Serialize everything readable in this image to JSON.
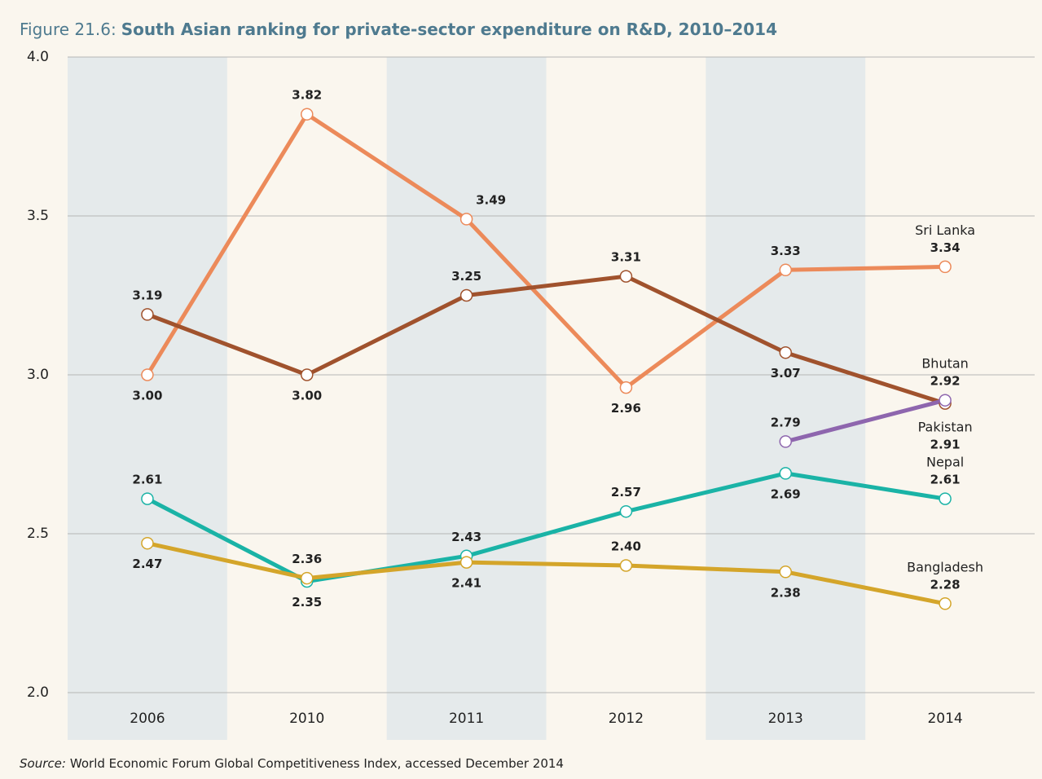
{
  "chart_data": {
    "type": "line",
    "figure_label": "Figure 21.6:",
    "title": "South Asian ranking for private-sector expenditure on R&D, 2010–2014",
    "categories": [
      "2006",
      "2010",
      "2011",
      "2012",
      "2013",
      "2014"
    ],
    "series": [
      {
        "name": "Sri Lanka",
        "color": "#ec8a5a",
        "values": [
          3.0,
          3.82,
          3.49,
          2.96,
          3.33,
          3.34
        ],
        "value_labels": [
          "3.00",
          "3.82",
          "3.49",
          "2.96",
          "3.33",
          "3.34"
        ]
      },
      {
        "name": "Pakistan",
        "color": "#a0522d",
        "values": [
          3.19,
          3.0,
          3.25,
          3.31,
          3.07,
          2.91
        ],
        "value_labels": [
          "3.19",
          "3.00",
          "3.25",
          "3.31",
          "3.07",
          "2.91"
        ]
      },
      {
        "name": "Bhutan",
        "color": "#8e66ae",
        "values": [
          null,
          null,
          null,
          null,
          2.79,
          2.92
        ],
        "value_labels": [
          null,
          null,
          null,
          null,
          "2.79",
          "2.92"
        ]
      },
      {
        "name": "Nepal",
        "color": "#1ab3a6",
        "values": [
          2.61,
          2.35,
          2.43,
          2.57,
          2.69,
          2.61
        ],
        "value_labels": [
          "2.61",
          "2.35",
          "2.43",
          "2.57",
          "2.69",
          "2.61"
        ]
      },
      {
        "name": "Bangladesh",
        "color": "#d4a52a",
        "values": [
          2.47,
          2.36,
          2.41,
          2.4,
          2.38,
          2.28
        ],
        "value_labels": [
          "2.47",
          "2.36",
          "2.41",
          "2.40",
          "2.38",
          "2.28"
        ]
      }
    ],
    "ylim": [
      2.0,
      4.0
    ],
    "yticks": [
      {
        "value": 2,
        "label": "2.0"
      },
      2.5,
      {
        "value": 3,
        "label": "3.0"
      },
      3.5,
      {
        "value": 4,
        "label": "4.0"
      }
    ],
    "grid": true,
    "source_label": "Source:",
    "source": "World Economic Forum Global Competitiveness Index, accessed December 2014"
  }
}
